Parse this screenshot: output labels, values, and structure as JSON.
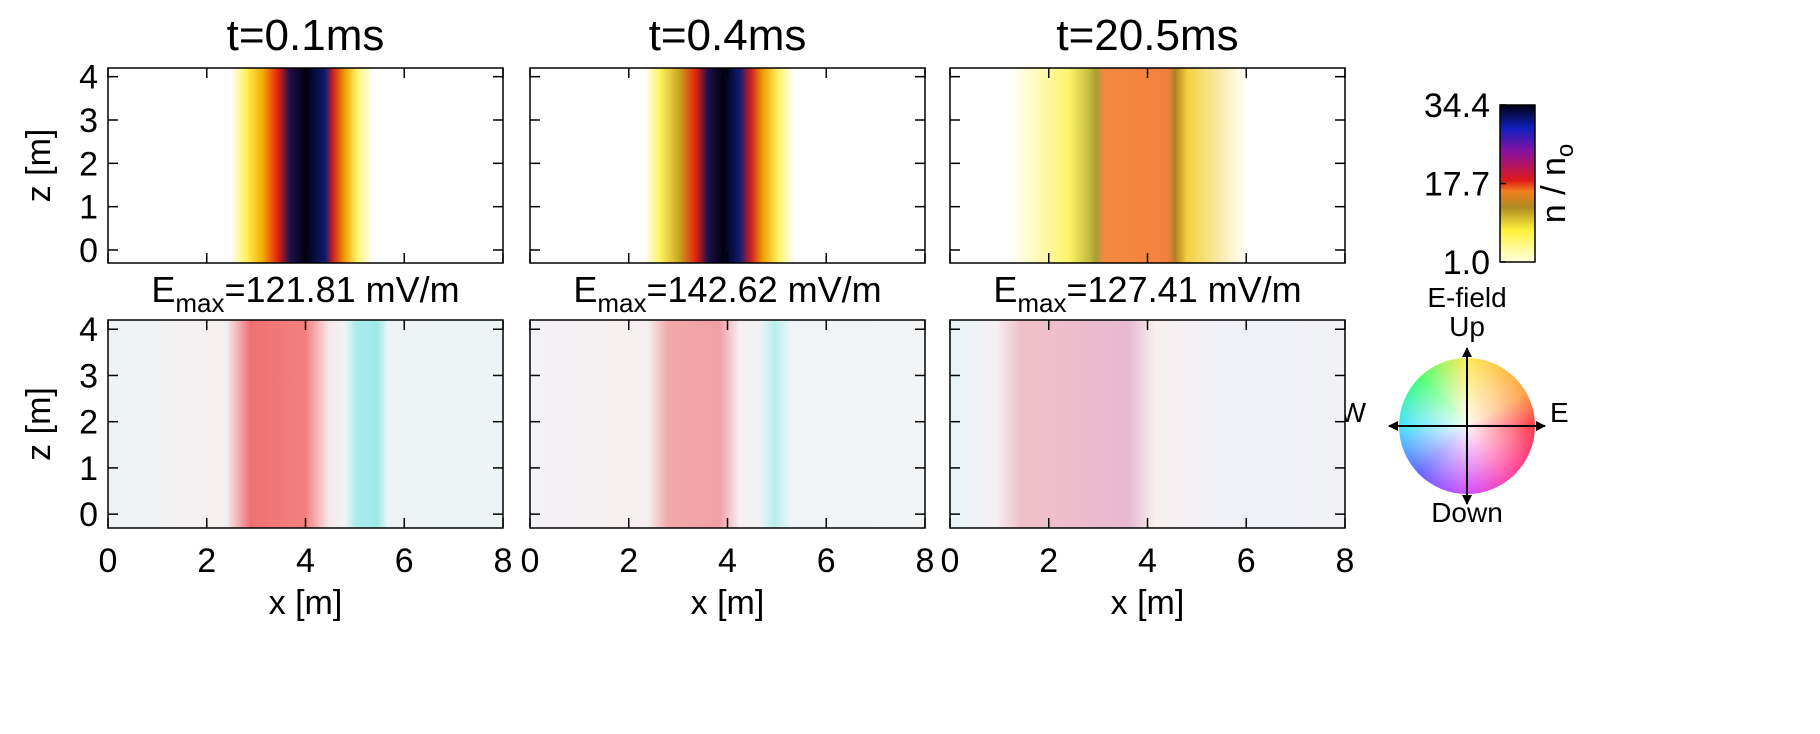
{
  "chart_data": [
    {
      "type": "heatmap",
      "title": "t=0.1ms",
      "ylabel": "z [m]",
      "xlim": [
        0,
        8
      ],
      "ylim": [
        -0.3,
        4.2
      ],
      "xticks": [
        0,
        2,
        4,
        6,
        8
      ],
      "yticks": [
        0,
        1,
        2,
        3,
        4
      ],
      "xtick_labels": false,
      "ytick_labels": true
    },
    {
      "type": "heatmap",
      "title": "t=0.4ms",
      "xlim": [
        0,
        8
      ],
      "ylim": [
        -0.3,
        4.2
      ],
      "xticks": [
        0,
        2,
        4,
        6,
        8
      ],
      "yticks": [
        0,
        1,
        2,
        3,
        4
      ],
      "xtick_labels": false,
      "ytick_labels": false
    },
    {
      "type": "heatmap",
      "title": "t=20.5ms",
      "xlim": [
        0,
        8
      ],
      "ylim": [
        -0.3,
        4.2
      ],
      "xticks": [
        0,
        2,
        4,
        6,
        8
      ],
      "yticks": [
        0,
        1,
        2,
        3,
        4
      ],
      "xtick_labels": false,
      "ytick_labels": false
    },
    {
      "type": "heatmap",
      "title": "E",
      "title_subscript": "max",
      "title_suffix": "=121.81 mV/m",
      "xlabel": "x [m]",
      "ylabel": "z [m]",
      "xlim": [
        0,
        8
      ],
      "ylim": [
        -0.3,
        4.2
      ],
      "xticks": [
        0,
        2,
        4,
        6,
        8
      ],
      "yticks": [
        0,
        1,
        2,
        3,
        4
      ],
      "xtick_labels": true,
      "ytick_labels": true
    },
    {
      "type": "heatmap",
      "title": "E",
      "title_subscript": "max",
      "title_suffix": "=142.62 mV/m",
      "xlabel": "x [m]",
      "xlim": [
        0,
        8
      ],
      "ylim": [
        -0.3,
        4.2
      ],
      "xticks": [
        0,
        2,
        4,
        6,
        8
      ],
      "yticks": [
        0,
        1,
        2,
        3,
        4
      ],
      "xtick_labels": true,
      "ytick_labels": false
    },
    {
      "type": "heatmap",
      "title": "E",
      "title_subscript": "max",
      "title_suffix": "=127.41 mV/m",
      "xlabel": "x [m]",
      "xlim": [
        0,
        8
      ],
      "ylim": [
        -0.3,
        4.2
      ],
      "xticks": [
        0,
        2,
        4,
        6,
        8
      ],
      "yticks": [
        0,
        1,
        2,
        3,
        4
      ],
      "xtick_labels": true,
      "ytick_labels": false
    },
    {
      "type": "colorbar",
      "ylabel": "n / n",
      "ylabel_subscript": "o",
      "ylim": [
        1.0,
        34.4
      ],
      "yticks": [
        {
          "value": 1.0,
          "label": "1.0"
        },
        17.7,
        34.4
      ]
    }
  ],
  "compass": {
    "title": "E-field",
    "up": "Up",
    "down": "Down",
    "west": "W",
    "east": "E"
  }
}
